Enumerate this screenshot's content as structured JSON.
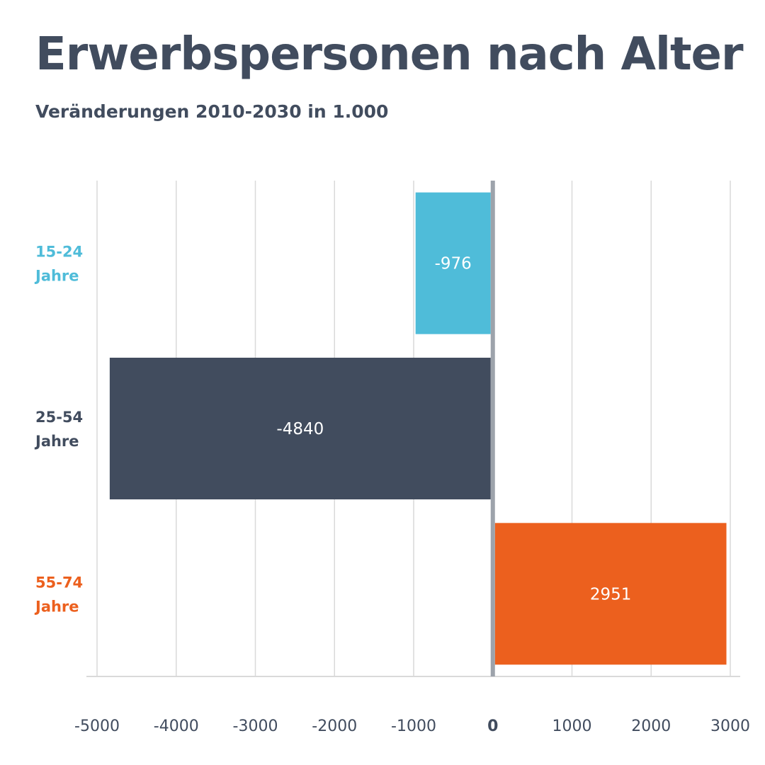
{
  "title": "Erwerbspersonen nach Alter",
  "subtitle": "Veränderungen 2010-2030 in 1.000",
  "colors": {
    "text": "#414c5e",
    "grid": "#d9d9d9",
    "axis": "#9da3ab",
    "label_on_bar": "#ffffff"
  },
  "chart_data": {
    "type": "bar",
    "orientation": "horizontal",
    "categories": [
      {
        "label": [
          "15-24",
          "Jahre"
        ],
        "color": "#4fbcd9"
      },
      {
        "label": [
          "25-54",
          "Jahre"
        ],
        "color": "#414c5e"
      },
      {
        "label": [
          "55-74",
          "Jahre"
        ],
        "color": "#ec601e"
      }
    ],
    "values": [
      -976,
      -4840,
      2951
    ],
    "value_labels": [
      "-976",
      "-4840",
      "2951"
    ],
    "xlim": [
      -5000,
      3000
    ],
    "xticks": [
      -5000,
      -4000,
      -3000,
      -2000,
      -1000,
      0,
      1000,
      2000,
      3000
    ],
    "xtick_labels": [
      "-5000",
      "-4000",
      "-3000",
      "-2000",
      "-1000",
      "0",
      "1000",
      "2000",
      "3000"
    ],
    "grid": true,
    "legend": "none"
  }
}
